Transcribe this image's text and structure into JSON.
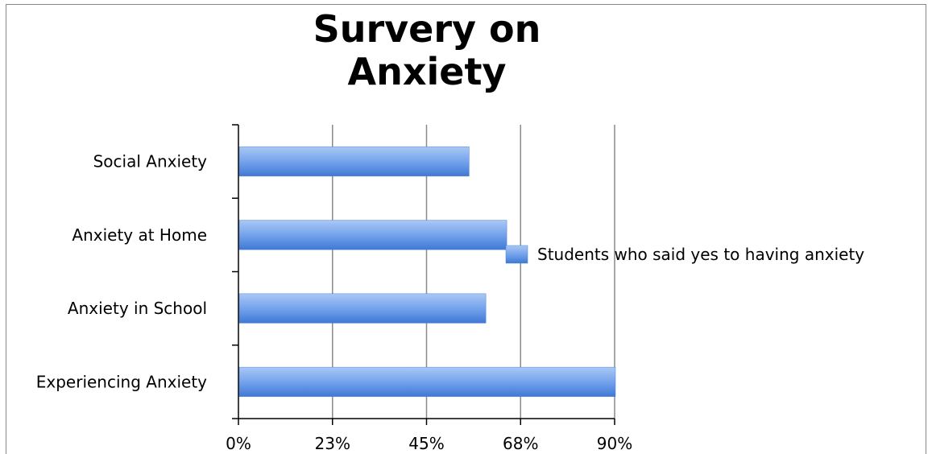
{
  "chart_data": {
    "type": "bar",
    "orientation": "horizontal",
    "title": "Survery on Anxiety",
    "categories": [
      "Social Anxiety",
      "Anxiety at Home",
      "Anxiety in School",
      "Experiencing Anxiety"
    ],
    "series": [
      {
        "name": "Students who said yes to having anxiety",
        "values": [
          55,
          64,
          59,
          90
        ],
        "color": "#5b8fe0"
      }
    ],
    "x_ticks": [
      "0%",
      "23%",
      "45%",
      "68%",
      "90%"
    ],
    "xlim": [
      0,
      90
    ],
    "xlabel": "",
    "ylabel": "",
    "grid": true,
    "legend": "right"
  }
}
